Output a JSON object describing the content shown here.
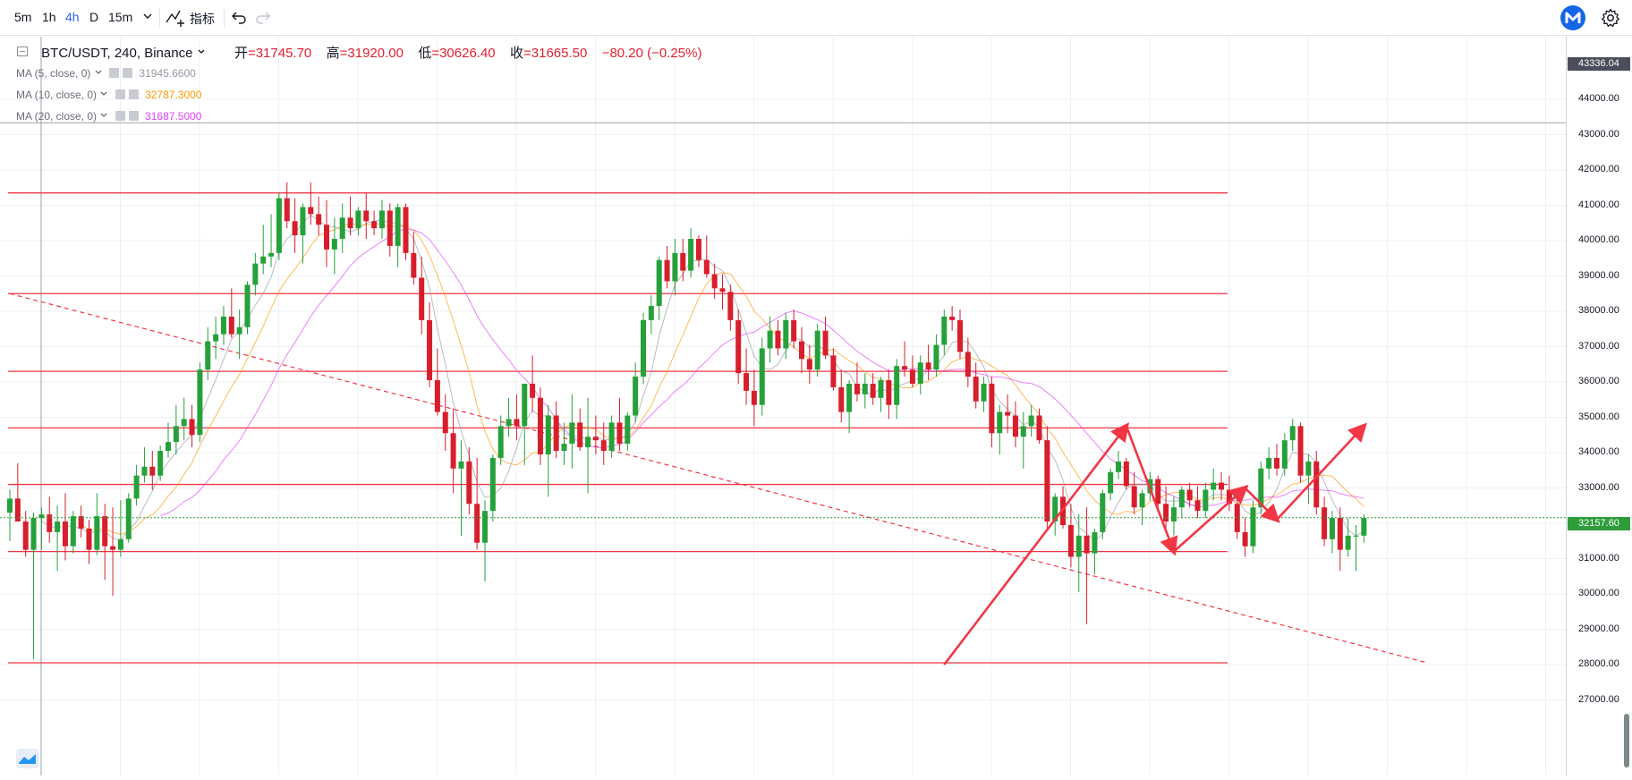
{
  "toolbar": {
    "timeframes": [
      "5m",
      "1h",
      "4h",
      "D",
      "15m"
    ],
    "active_timeframe": "4h",
    "dropdown_icon": "chevron-down-icon",
    "indicators_label": "指标",
    "undo_icon": "undo-icon",
    "redo_icon": "redo-icon",
    "settings_icon": "gear-icon",
    "logo_icon": "m-logo-icon"
  },
  "legend": {
    "symbol": "BTC/USDT, 240, Binance",
    "open_label": "开",
    "open": "31745.70",
    "high_label": "高",
    "high": "31920.00",
    "low_label": "低",
    "low": "30626.40",
    "close_label": "收",
    "close": "31665.50",
    "change": "−80.20 (−0.25%)"
  },
  "indicators": [
    {
      "label": "MA (5, close, 0)",
      "value": "31945.6600",
      "color": "#9598a1"
    },
    {
      "label": "MA (10, close, 0)",
      "value": "32787.3000",
      "color": "#ff9800"
    },
    {
      "label": "MA (20, close, 0)",
      "value": "31687.5000",
      "color": "#e040fb"
    }
  ],
  "price_axis": {
    "labels": [
      "44000.00",
      "43000.00",
      "42000.00",
      "41000.00",
      "40000.00",
      "39000.00",
      "38000.00",
      "37000.00",
      "36000.00",
      "35000.00",
      "34000.00",
      "33000.00",
      "32000.00",
      "31000.00",
      "30000.00",
      "29000.00",
      "28000.00",
      "27000.00"
    ],
    "crosshair_price": "43336.04",
    "last_price": "32157.60"
  },
  "colors": {
    "up": "#26a13a",
    "down": "#d81e2c",
    "drawing": "#f23645",
    "last_price": "#2e9c3a",
    "crosshair_tag": "#4a4e5a",
    "accent": "#2962ff"
  },
  "chart_data": {
    "type": "candlestick",
    "symbol": "BTC/USDT",
    "interval": "240",
    "exchange": "Binance",
    "ylim": [
      26500,
      44200
    ],
    "last_price": 32157.6,
    "ohlc": [
      [
        32300,
        32950,
        31500,
        32700
      ],
      [
        32700,
        33700,
        32100,
        32050
      ],
      [
        32050,
        32350,
        31050,
        31250
      ],
      [
        31250,
        32300,
        28150,
        32150
      ],
      [
        32150,
        32450,
        31250,
        32250
      ],
      [
        32250,
        32750,
        31450,
        31750
      ],
      [
        31750,
        32500,
        30650,
        32050
      ],
      [
        32050,
        32850,
        30950,
        31350
      ],
      [
        31350,
        32350,
        31150,
        32200
      ],
      [
        32200,
        32500,
        31600,
        31850
      ],
      [
        31850,
        32100,
        30850,
        31250
      ],
      [
        31250,
        32850,
        31100,
        32200
      ],
      [
        32200,
        32550,
        30400,
        31350
      ],
      [
        31350,
        32450,
        29950,
        31250
      ],
      [
        31250,
        32650,
        31050,
        31550
      ],
      [
        31550,
        32850,
        31450,
        32700
      ],
      [
        32700,
        33650,
        32500,
        33350
      ],
      [
        33350,
        34150,
        33150,
        33600
      ],
      [
        33600,
        34050,
        32950,
        33350
      ],
      [
        33350,
        34200,
        33200,
        34050
      ],
      [
        34050,
        34850,
        33850,
        34300
      ],
      [
        34300,
        35350,
        33950,
        34750
      ],
      [
        34750,
        35550,
        34350,
        34950
      ],
      [
        34950,
        35350,
        34150,
        34500
      ],
      [
        34500,
        36550,
        34300,
        36350
      ],
      [
        36350,
        37550,
        36050,
        37150
      ],
      [
        37150,
        37850,
        36650,
        37350
      ],
      [
        37350,
        38150,
        37050,
        37850
      ],
      [
        37850,
        38650,
        37250,
        37350
      ],
      [
        37350,
        38050,
        36650,
        37550
      ],
      [
        37550,
        38850,
        37350,
        38750
      ],
      [
        38750,
        39650,
        38450,
        39350
      ],
      [
        39350,
        40450,
        39050,
        39550
      ],
      [
        39550,
        40750,
        39250,
        39650
      ],
      [
        39650,
        41350,
        39450,
        41200
      ],
      [
        41200,
        41650,
        40350,
        40550
      ],
      [
        40550,
        41200,
        39650,
        40150
      ],
      [
        40150,
        41050,
        39350,
        40950
      ],
      [
        40950,
        41650,
        40450,
        40750
      ],
      [
        40750,
        41250,
        40150,
        40450
      ],
      [
        40450,
        41150,
        39250,
        39750
      ],
      [
        39750,
        40650,
        39050,
        40050
      ],
      [
        40050,
        41050,
        39650,
        40650
      ],
      [
        40650,
        41250,
        40150,
        40350
      ],
      [
        40350,
        40950,
        40150,
        40850
      ],
      [
        40850,
        41350,
        40050,
        40550
      ],
      [
        40550,
        40850,
        40150,
        40350
      ],
      [
        40350,
        41150,
        40050,
        40850
      ],
      [
        40850,
        41050,
        39550,
        39850
      ],
      [
        39850,
        41050,
        39250,
        40950
      ],
      [
        40950,
        41050,
        39450,
        39650
      ],
      [
        39650,
        40250,
        38750,
        38950
      ],
      [
        38950,
        39550,
        37350,
        37750
      ],
      [
        37750,
        38250,
        35850,
        36050
      ],
      [
        36050,
        36950,
        35050,
        35150
      ],
      [
        35150,
        35650,
        34050,
        34550
      ],
      [
        34550,
        35250,
        32850,
        33550
      ],
      [
        33550,
        34350,
        31650,
        33750
      ],
      [
        33750,
        34150,
        32250,
        32550
      ],
      [
        32550,
        33850,
        31250,
        31450
      ],
      [
        31450,
        32650,
        30350,
        32350
      ],
      [
        32350,
        33950,
        32050,
        33850
      ],
      [
        33850,
        35050,
        33650,
        34750
      ],
      [
        34750,
        35550,
        34450,
        34950
      ],
      [
        34950,
        35650,
        34350,
        34750
      ],
      [
        34750,
        35950,
        33650,
        35950
      ],
      [
        35950,
        36750,
        35150,
        35550
      ],
      [
        35550,
        35850,
        33650,
        33950
      ],
      [
        33950,
        35350,
        32750,
        35050
      ],
      [
        35050,
        35450,
        33850,
        34050
      ],
      [
        34050,
        34850,
        33650,
        34250
      ],
      [
        34250,
        35650,
        33550,
        34850
      ],
      [
        34850,
        35250,
        34050,
        34150
      ],
      [
        34150,
        35550,
        32850,
        34450
      ],
      [
        34450,
        35050,
        33950,
        34350
      ],
      [
        34350,
        34850,
        33650,
        34050
      ],
      [
        34050,
        35050,
        33850,
        34850
      ],
      [
        34850,
        35550,
        34050,
        34250
      ],
      [
        34250,
        35150,
        34050,
        35050
      ],
      [
        35050,
        36550,
        34850,
        36150
      ],
      [
        36150,
        37950,
        35950,
        37750
      ],
      [
        37750,
        38450,
        37350,
        38150
      ],
      [
        38150,
        39550,
        37750,
        39450
      ],
      [
        39450,
        39850,
        38650,
        38850
      ],
      [
        38850,
        40050,
        38450,
        39650
      ],
      [
        39650,
        40050,
        38850,
        39150
      ],
      [
        39150,
        40350,
        38950,
        40050
      ],
      [
        40050,
        40150,
        39250,
        39450
      ],
      [
        39450,
        40150,
        38950,
        39050
      ],
      [
        39050,
        39350,
        38350,
        38650
      ],
      [
        38650,
        39050,
        38050,
        38550
      ],
      [
        38550,
        38750,
        37450,
        37750
      ],
      [
        37750,
        38050,
        35950,
        36250
      ],
      [
        36250,
        36950,
        35350,
        35750
      ],
      [
        35750,
        36350,
        34750,
        35350
      ],
      [
        35350,
        37250,
        35050,
        36950
      ],
      [
        36950,
        37850,
        36550,
        37450
      ],
      [
        37450,
        37750,
        36750,
        36950
      ],
      [
        36950,
        37950,
        36650,
        37750
      ],
      [
        37750,
        38050,
        36950,
        37150
      ],
      [
        37150,
        37550,
        36250,
        36650
      ],
      [
        36650,
        37050,
        35950,
        36350
      ],
      [
        36350,
        37650,
        36150,
        37450
      ],
      [
        37450,
        37850,
        36650,
        36750
      ],
      [
        36750,
        36950,
        35750,
        35850
      ],
      [
        35850,
        36350,
        34850,
        35150
      ],
      [
        35150,
        36050,
        34550,
        35950
      ],
      [
        35950,
        36550,
        35450,
        35650
      ],
      [
        35650,
        36250,
        35250,
        35950
      ],
      [
        35950,
        36250,
        35350,
        35550
      ],
      [
        35550,
        36150,
        35150,
        36050
      ],
      [
        36050,
        36350,
        34950,
        35350
      ],
      [
        35350,
        36650,
        34950,
        36450
      ],
      [
        36450,
        37150,
        36150,
        36350
      ],
      [
        36350,
        36750,
        35850,
        35950
      ],
      [
        35950,
        36750,
        35650,
        36550
      ],
      [
        36550,
        37050,
        36050,
        36350
      ],
      [
        36350,
        37350,
        36150,
        37050
      ],
      [
        37050,
        38050,
        36750,
        37850
      ],
      [
        37850,
        38150,
        37450,
        37750
      ],
      [
        37750,
        38050,
        36650,
        36850
      ],
      [
        36850,
        37250,
        35850,
        36150
      ],
      [
        36150,
        36550,
        35250,
        35450
      ],
      [
        35450,
        36150,
        35150,
        35950
      ],
      [
        35950,
        36150,
        34150,
        34550
      ],
      [
        34550,
        35350,
        33950,
        35150
      ],
      [
        35150,
        35650,
        34550,
        35050
      ],
      [
        35050,
        35450,
        34150,
        34450
      ],
      [
        34450,
        35150,
        33550,
        34750
      ],
      [
        34750,
        35350,
        34450,
        35050
      ],
      [
        35050,
        35250,
        34250,
        34350
      ],
      [
        34350,
        34750,
        31850,
        32050
      ],
      [
        32050,
        32850,
        31650,
        32750
      ],
      [
        32750,
        33050,
        31850,
        31950
      ],
      [
        31950,
        32550,
        30750,
        31050
      ],
      [
        31050,
        32250,
        30050,
        31650
      ],
      [
        31650,
        32450,
        29150,
        31150
      ],
      [
        31150,
        31850,
        30550,
        31750
      ],
      [
        31750,
        32950,
        31550,
        32850
      ],
      [
        32850,
        33550,
        32650,
        33450
      ],
      [
        33450,
        34050,
        33250,
        33750
      ],
      [
        33750,
        33850,
        32950,
        33050
      ],
      [
        33050,
        33450,
        32250,
        32450
      ],
      [
        32450,
        32950,
        31950,
        32850
      ],
      [
        32850,
        33450,
        32650,
        33250
      ],
      [
        33250,
        33350,
        32350,
        32550
      ],
      [
        32550,
        33050,
        31850,
        32050
      ],
      [
        32050,
        32750,
        31650,
        32450
      ],
      [
        32450,
        33050,
        32150,
        32950
      ],
      [
        32950,
        33150,
        32450,
        32650
      ],
      [
        32650,
        33050,
        32150,
        32350
      ],
      [
        32350,
        33150,
        32150,
        32950
      ],
      [
        32950,
        33550,
        32650,
        33150
      ],
      [
        33150,
        33450,
        32650,
        32950
      ],
      [
        32950,
        33350,
        32350,
        32550
      ],
      [
        32550,
        32750,
        31550,
        31750
      ],
      [
        31750,
        32150,
        31050,
        31350
      ],
      [
        31350,
        32650,
        31150,
        32450
      ],
      [
        32450,
        33750,
        32250,
        33550
      ],
      [
        33550,
        34150,
        33250,
        33850
      ],
      [
        33850,
        34250,
        33350,
        33550
      ],
      [
        33550,
        34550,
        33350,
        34350
      ],
      [
        34350,
        34950,
        34050,
        34750
      ],
      [
        34750,
        34850,
        33150,
        33350
      ],
      [
        33350,
        33950,
        32550,
        33750
      ],
      [
        33750,
        34050,
        32250,
        32450
      ],
      [
        32450,
        32750,
        31350,
        31550
      ],
      [
        31550,
        32350,
        31150,
        32150
      ],
      [
        32150,
        32450,
        30650,
        31250
      ],
      [
        31250,
        32150,
        31050,
        31650
      ],
      [
        31650,
        31950,
        30650,
        31650
      ],
      [
        31650,
        32250,
        31450,
        32150
      ]
    ],
    "moving_averages": [
      {
        "name": "MA (5, close, 0)",
        "value": 31945.66,
        "color": "#9598a1"
      },
      {
        "name": "MA (10, close, 0)",
        "value": 32787.3,
        "color": "#ff9800"
      },
      {
        "name": "MA (20, close, 0)",
        "value": 31687.5,
        "color": "#e040fb"
      }
    ],
    "horizontal_levels": [
      41350,
      38500,
      36300,
      34700,
      33100,
      31200,
      28050
    ],
    "trend_line": {
      "from_bar": 0,
      "from_price": 38500,
      "to_bar": 179,
      "to_price": 28050
    },
    "projection_arrows": [
      [
        {
          "bar": 118,
          "price": 28000
        },
        {
          "bar": 141,
          "price": 34750
        }
      ],
      [
        {
          "bar": 141,
          "price": 34750
        },
        {
          "bar": 147,
          "price": 31200
        }
      ],
      [
        {
          "bar": 147,
          "price": 31200
        },
        {
          "bar": 156,
          "price": 33000
        }
      ],
      [
        {
          "bar": 156,
          "price": 33000
        },
        {
          "bar": 160,
          "price": 32100
        }
      ],
      [
        {
          "bar": 160,
          "price": 32100
        },
        {
          "bar": 171,
          "price": 34750
        }
      ]
    ]
  }
}
